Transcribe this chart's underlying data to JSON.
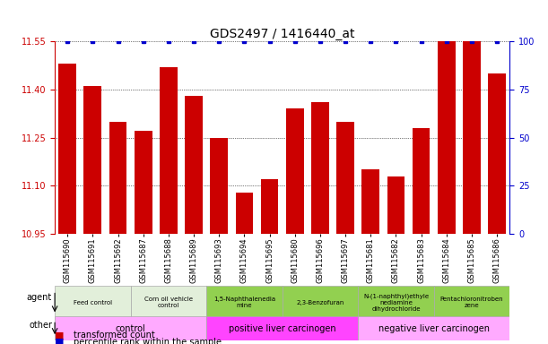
{
  "title": "GDS2497 / 1416440_at",
  "samples": [
    "GSM115690",
    "GSM115691",
    "GSM115692",
    "GSM115687",
    "GSM115688",
    "GSM115689",
    "GSM115693",
    "GSM115694",
    "GSM115695",
    "GSM115680",
    "GSM115696",
    "GSM115697",
    "GSM115681",
    "GSM115682",
    "GSM115683",
    "GSM115684",
    "GSM115685",
    "GSM115686"
  ],
  "red_values": [
    11.48,
    11.41,
    11.3,
    11.27,
    11.47,
    11.38,
    11.25,
    11.08,
    11.12,
    11.34,
    11.36,
    11.3,
    11.15,
    11.13,
    11.28,
    11.55,
    11.55,
    11.45
  ],
  "blue_values": [
    100,
    100,
    100,
    100,
    100,
    100,
    100,
    100,
    100,
    100,
    100,
    100,
    100,
    100,
    100,
    100,
    100,
    100
  ],
  "ylim_left": [
    10.95,
    11.55
  ],
  "ylim_right": [
    0,
    100
  ],
  "yticks_left": [
    10.95,
    11.1,
    11.25,
    11.4,
    11.55
  ],
  "yticks_right": [
    0,
    25,
    50,
    75,
    100
  ],
  "agent_groups": [
    {
      "label": "Feed control",
      "start": 0,
      "end": 3,
      "color": "#e2efda"
    },
    {
      "label": "Corn oil vehicle\ncontrol",
      "start": 3,
      "end": 6,
      "color": "#e2efda"
    },
    {
      "label": "1,5-Naphthalenedia\nmine",
      "start": 6,
      "end": 9,
      "color": "#92d050"
    },
    {
      "label": "2,3-Benzofuran",
      "start": 9,
      "end": 12,
      "color": "#92d050"
    },
    {
      "label": "N-(1-naphthyl)ethyle\nnediamine\ndihydrochloride",
      "start": 12,
      "end": 15,
      "color": "#92d050"
    },
    {
      "label": "Pentachloronitroben\nzene",
      "start": 15,
      "end": 18,
      "color": "#92d050"
    }
  ],
  "other_groups": [
    {
      "label": "control",
      "start": 0,
      "end": 6,
      "color": "#ffaaff"
    },
    {
      "label": "positive liver carcinogen",
      "start": 6,
      "end": 12,
      "color": "#ff44ff"
    },
    {
      "label": "negative liver carcinogen",
      "start": 12,
      "end": 18,
      "color": "#ffaaff"
    }
  ],
  "bar_color": "#cc0000",
  "dot_color": "#0000cc",
  "background_color": "#ffffff",
  "left_axis_color": "#cc0000",
  "right_axis_color": "#0000cc",
  "title_fontsize": 10,
  "tick_fontsize": 7,
  "sample_fontsize": 6
}
